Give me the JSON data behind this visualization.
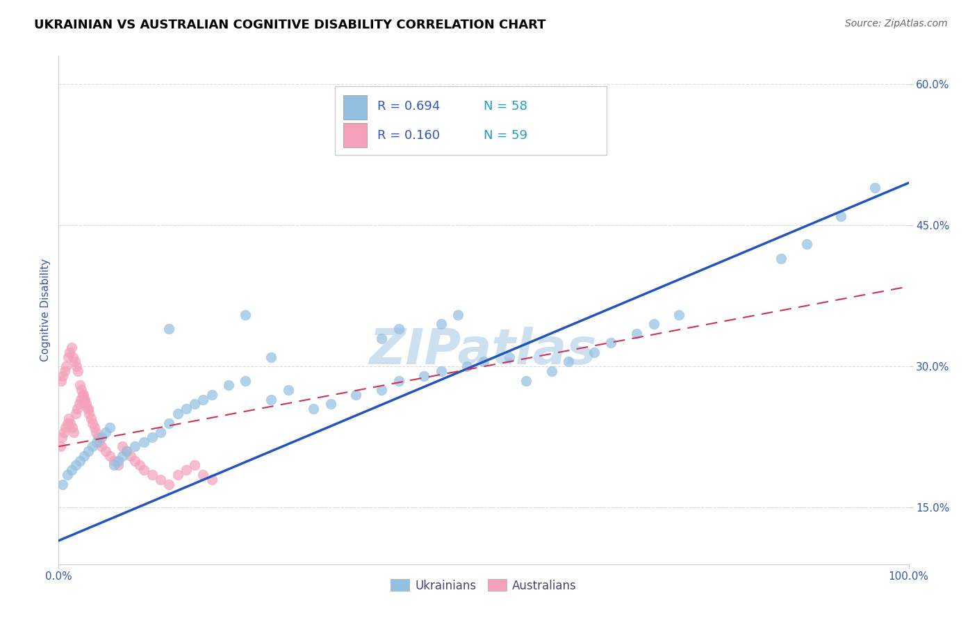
{
  "title": "UKRAINIAN VS AUSTRALIAN COGNITIVE DISABILITY CORRELATION CHART",
  "source": "Source: ZipAtlas.com",
  "ylabel": "Cognitive Disability",
  "watermark": "ZIPatlas",
  "blue_scatter_x": [
    0.005,
    0.01,
    0.015,
    0.02,
    0.025,
    0.03,
    0.035,
    0.04,
    0.045,
    0.05,
    0.055,
    0.06,
    0.065,
    0.07,
    0.075,
    0.08,
    0.09,
    0.1,
    0.11,
    0.12,
    0.13,
    0.14,
    0.15,
    0.16,
    0.17,
    0.18,
    0.2,
    0.22,
    0.25,
    0.27,
    0.3,
    0.32,
    0.35,
    0.38,
    0.4,
    0.43,
    0.45,
    0.48,
    0.5,
    0.53,
    0.55,
    0.58,
    0.6,
    0.63,
    0.65,
    0.68,
    0.7,
    0.73,
    0.85,
    0.88,
    0.92,
    0.96,
    0.45,
    0.47,
    0.38,
    0.4,
    0.22,
    0.25,
    0.13
  ],
  "blue_scatter_y": [
    0.175,
    0.185,
    0.19,
    0.195,
    0.2,
    0.205,
    0.21,
    0.215,
    0.22,
    0.225,
    0.23,
    0.235,
    0.195,
    0.2,
    0.205,
    0.21,
    0.215,
    0.22,
    0.225,
    0.23,
    0.24,
    0.25,
    0.255,
    0.26,
    0.265,
    0.27,
    0.28,
    0.285,
    0.265,
    0.275,
    0.255,
    0.26,
    0.27,
    0.275,
    0.285,
    0.29,
    0.295,
    0.3,
    0.305,
    0.31,
    0.285,
    0.295,
    0.305,
    0.315,
    0.325,
    0.335,
    0.345,
    0.355,
    0.415,
    0.43,
    0.46,
    0.49,
    0.345,
    0.355,
    0.33,
    0.34,
    0.355,
    0.31,
    0.34
  ],
  "pink_scatter_x": [
    0.002,
    0.004,
    0.006,
    0.008,
    0.01,
    0.012,
    0.014,
    0.016,
    0.018,
    0.02,
    0.022,
    0.024,
    0.026,
    0.028,
    0.03,
    0.032,
    0.034,
    0.036,
    0.038,
    0.04,
    0.042,
    0.044,
    0.046,
    0.048,
    0.05,
    0.055,
    0.06,
    0.065,
    0.07,
    0.075,
    0.08,
    0.085,
    0.09,
    0.095,
    0.1,
    0.11,
    0.12,
    0.13,
    0.14,
    0.15,
    0.16,
    0.17,
    0.18,
    0.003,
    0.005,
    0.007,
    0.009,
    0.011,
    0.013,
    0.015,
    0.017,
    0.019,
    0.021,
    0.023,
    0.025,
    0.027,
    0.029,
    0.031,
    0.035
  ],
  "pink_scatter_y": [
    0.215,
    0.225,
    0.23,
    0.235,
    0.24,
    0.245,
    0.24,
    0.235,
    0.23,
    0.25,
    0.255,
    0.26,
    0.265,
    0.27,
    0.265,
    0.26,
    0.255,
    0.25,
    0.245,
    0.24,
    0.235,
    0.23,
    0.225,
    0.22,
    0.215,
    0.21,
    0.205,
    0.2,
    0.195,
    0.215,
    0.21,
    0.205,
    0.2,
    0.195,
    0.19,
    0.185,
    0.18,
    0.175,
    0.185,
    0.19,
    0.195,
    0.185,
    0.18,
    0.285,
    0.29,
    0.295,
    0.3,
    0.31,
    0.315,
    0.32,
    0.31,
    0.305,
    0.3,
    0.295,
    0.28,
    0.275,
    0.27,
    0.265,
    0.255
  ],
  "blue_line_x": [
    0.0,
    1.0
  ],
  "blue_line_y": [
    0.115,
    0.495
  ],
  "pink_line_x": [
    0.0,
    1.0
  ],
  "pink_line_y": [
    0.215,
    0.385
  ],
  "xlim": [
    0.0,
    1.0
  ],
  "ylim": [
    0.09,
    0.63
  ],
  "ytick_vals": [
    0.15,
    0.3,
    0.45,
    0.6
  ],
  "ytick_labels": [
    "15.0%",
    "30.0%",
    "45.0%",
    "60.0%"
  ],
  "xtick_vals": [
    0.0,
    1.0
  ],
  "xtick_labels": [
    "0.0%",
    "100.0%"
  ],
  "grid_color": "#cccccc",
  "blue_color": "#92c0e0",
  "pink_color": "#f4a0b8",
  "blue_line_color": "#2255bb",
  "pink_line_color": "#cc3355",
  "title_fontsize": 13,
  "source_fontsize": 10,
  "watermark_color": "#cce0f0",
  "watermark_fontsize": 52,
  "axis_label_color": "#3355aa",
  "tick_color": "#3355aa",
  "legend_R_color": "#3355bb",
  "legend_N_color": "#2299cc"
}
